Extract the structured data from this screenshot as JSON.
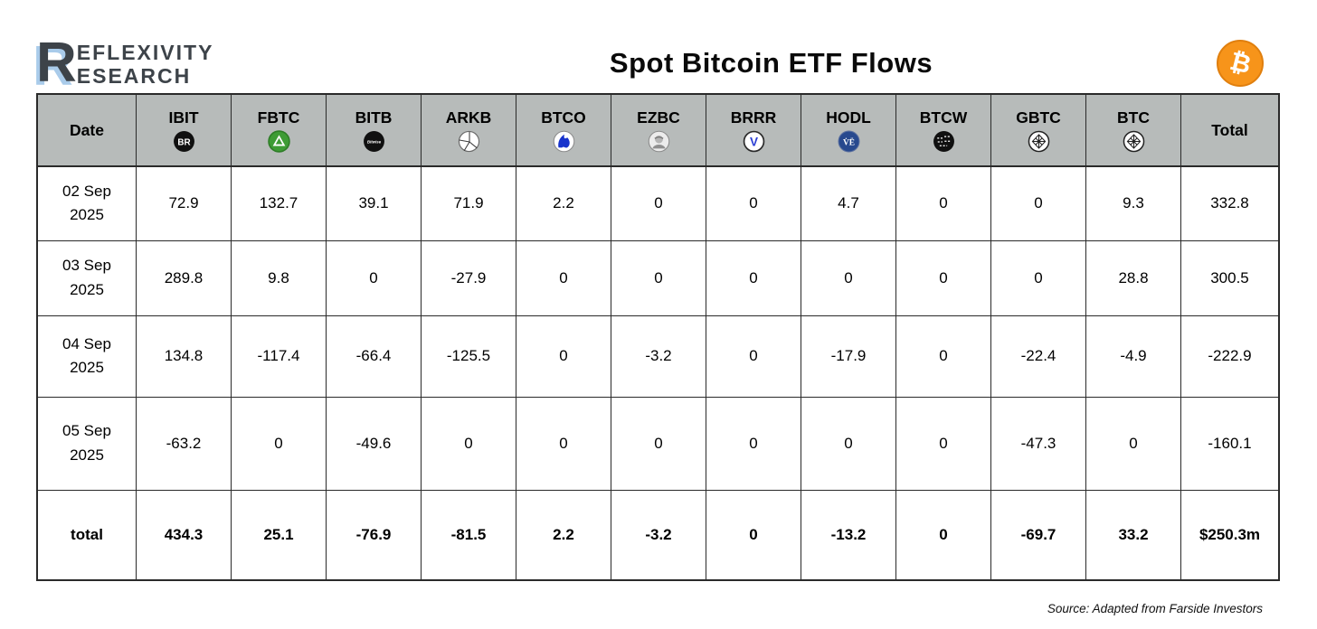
{
  "header": {
    "title": "Spot Bitcoin ETF Flows",
    "logo": {
      "big_letter": "R",
      "line1": "EFLEXIVITY",
      "line2": "ESEARCH"
    },
    "bitcoin_symbol": "₿"
  },
  "colors": {
    "header_row_bg": "#b7bbba",
    "table_border": "#2a2a2a",
    "bitcoin_orange": "#f7941a",
    "logo_dark": "#3d4349",
    "logo_blue_shadow": "#a9cbea",
    "fidelity_green": "#3e9c35",
    "invesco_blue": "#1733cc",
    "valkyrie_blue": "#2b3fd4",
    "vaneck_blue": "#27498e"
  },
  "table": {
    "columns": [
      {
        "key": "date",
        "label": "Date",
        "icon": null
      },
      {
        "key": "ibit",
        "label": "IBIT",
        "icon": "blackrock-icon"
      },
      {
        "key": "fbtc",
        "label": "FBTC",
        "icon": "fidelity-icon"
      },
      {
        "key": "bitb",
        "label": "BITB",
        "icon": "bitwise-icon"
      },
      {
        "key": "arkb",
        "label": "ARKB",
        "icon": "ark-icon"
      },
      {
        "key": "btco",
        "label": "BTCO",
        "icon": "invesco-icon"
      },
      {
        "key": "ezbc",
        "label": "EZBC",
        "icon": "franklin-icon"
      },
      {
        "key": "brrr",
        "label": "BRRR",
        "icon": "valkyrie-icon"
      },
      {
        "key": "hodl",
        "label": "HODL",
        "icon": "vaneck-icon"
      },
      {
        "key": "btcw",
        "label": "BTCW",
        "icon": "wisdomtree-icon"
      },
      {
        "key": "gbtc",
        "label": "GBTC",
        "icon": "grayscale-icon"
      },
      {
        "key": "btc",
        "label": "BTC",
        "icon": "grayscale-mini-icon"
      },
      {
        "key": "total",
        "label": "Total",
        "icon": null
      }
    ],
    "rows": [
      {
        "date": "02 Sep 2025",
        "values": [
          "72.9",
          "132.7",
          "39.1",
          "71.9",
          "2.2",
          "0",
          "0",
          "4.7",
          "0",
          "0",
          "9.3",
          "332.8"
        ]
      },
      {
        "date": "03 Sep 2025",
        "values": [
          "289.8",
          "9.8",
          "0",
          "-27.9",
          "0",
          "0",
          "0",
          "0",
          "0",
          "0",
          "28.8",
          "300.5"
        ]
      },
      {
        "date": "04 Sep 2025",
        "values": [
          "134.8",
          "-117.4",
          "-66.4",
          "-125.5",
          "0",
          "-3.2",
          "0",
          "-17.9",
          "0",
          "-22.4",
          "-4.9",
          "-222.9"
        ]
      },
      {
        "date": "05 Sep 2025",
        "values": [
          "-63.2",
          "0",
          "-49.6",
          "0",
          "0",
          "0",
          "0",
          "0",
          "0",
          "-47.3",
          "0",
          "-160.1"
        ]
      }
    ],
    "total_row": {
      "label": "total",
      "values": [
        "434.3",
        "25.1",
        "-76.9",
        "-81.5",
        "2.2",
        "-3.2",
        "0",
        "-13.2",
        "0",
        "-69.7",
        "33.2",
        "$250.3m"
      ]
    }
  },
  "chart_data": {
    "type": "table",
    "title": "Spot Bitcoin ETF Flows",
    "unit": "USD millions",
    "columns": [
      "Date",
      "IBIT",
      "FBTC",
      "BITB",
      "ARKB",
      "BTCO",
      "EZBC",
      "BRRR",
      "HODL",
      "BTCW",
      "GBTC",
      "BTC",
      "Total"
    ],
    "rows": [
      [
        "02 Sep 2025",
        72.9,
        132.7,
        39.1,
        71.9,
        2.2,
        0,
        0,
        4.7,
        0,
        0,
        9.3,
        332.8
      ],
      [
        "03 Sep 2025",
        289.8,
        9.8,
        0,
        -27.9,
        0,
        0,
        0,
        0,
        0,
        0,
        28.8,
        300.5
      ],
      [
        "04 Sep 2025",
        134.8,
        -117.4,
        -66.4,
        -125.5,
        0,
        -3.2,
        0,
        -17.9,
        0,
        -22.4,
        -4.9,
        -222.9
      ],
      [
        "05 Sep 2025",
        -63.2,
        0,
        -49.6,
        0,
        0,
        0,
        0,
        0,
        0,
        -47.3,
        0,
        -160.1
      ]
    ],
    "total_row": [
      "total",
      434.3,
      25.1,
      -76.9,
      -81.5,
      2.2,
      -3.2,
      0,
      -13.2,
      0,
      -69.7,
      33.2,
      "$250.3m"
    ]
  },
  "footer": {
    "source": "Source: Adapted from Farside Investors"
  }
}
